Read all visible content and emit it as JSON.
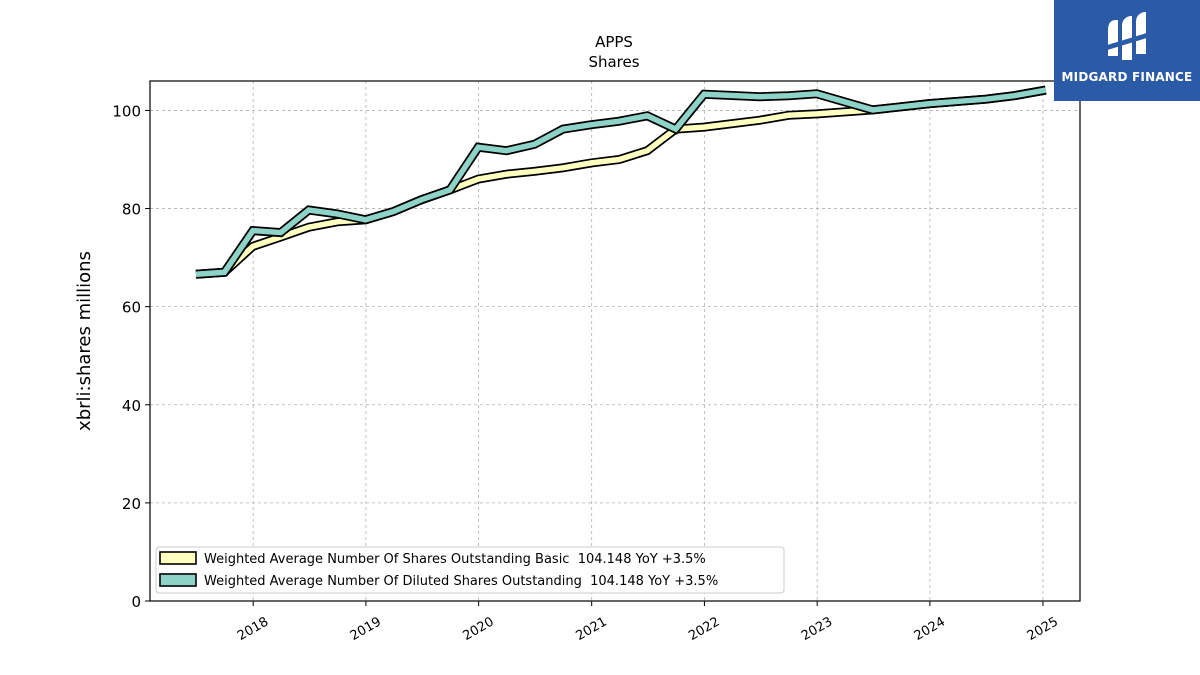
{
  "brand": {
    "name": "MIDGARD FINANCE",
    "color": "#2b5aa7"
  },
  "chart_data": {
    "type": "line",
    "title": "APPS",
    "subtitle": "Shares",
    "xlabel": "",
    "ylabel": "xbrli:shares millions",
    "xlim": [
      "2017-02-01",
      "2025-05-01"
    ],
    "ylim": [
      0,
      106
    ],
    "yticks": [
      0,
      20,
      40,
      60,
      80,
      100
    ],
    "xticks": [
      "2018",
      "2019",
      "2020",
      "2021",
      "2022",
      "2023",
      "2024",
      "2025"
    ],
    "grid": true,
    "legend_position": "lower-left",
    "series": [
      {
        "name": "Weighted Average Number Of Shares Outstanding Basic  104.148 YoY +3.5%",
        "color": "#ffffbf",
        "points": [
          [
            "2017-06-30",
            66.6
          ],
          [
            "2017-09-30",
            67.0
          ],
          [
            "2017-12-31",
            72.3
          ],
          [
            "2018-03-31",
            74.2
          ],
          [
            "2018-06-30",
            76.2
          ],
          [
            "2018-09-30",
            77.3
          ],
          [
            "2018-12-31",
            77.7
          ],
          [
            "2019-03-31",
            79.4
          ],
          [
            "2019-06-30",
            81.8
          ],
          [
            "2019-09-30",
            83.8
          ],
          [
            "2019-12-31",
            86.0
          ],
          [
            "2020-03-31",
            87.0
          ],
          [
            "2020-06-30",
            87.6
          ],
          [
            "2020-09-30",
            88.3
          ],
          [
            "2020-12-31",
            89.3
          ],
          [
            "2021-03-31",
            90.0
          ],
          [
            "2021-06-30",
            91.8
          ],
          [
            "2021-09-30",
            96.2
          ],
          [
            "2021-12-31",
            96.6
          ],
          [
            "2022-06-30",
            98.0
          ],
          [
            "2022-09-30",
            99.0
          ],
          [
            "2022-12-31",
            99.3
          ],
          [
            "2023-06-30",
            100.1
          ],
          [
            "2023-12-31",
            101.4
          ],
          [
            "2024-06-30",
            102.3
          ],
          [
            "2024-09-30",
            103.0
          ],
          [
            "2025-01-10",
            104.148
          ]
        ]
      },
      {
        "name": "Weighted Average Number Of Diluted Shares Outstanding  104.148 YoY +3.5%",
        "color": "#8dd3c7",
        "points": [
          [
            "2017-06-30",
            66.6
          ],
          [
            "2017-09-30",
            67.0
          ],
          [
            "2017-12-31",
            75.5
          ],
          [
            "2018-03-31",
            75.1
          ],
          [
            "2018-06-30",
            79.7
          ],
          [
            "2018-09-30",
            78.9
          ],
          [
            "2018-12-31",
            77.7
          ],
          [
            "2019-03-31",
            79.4
          ],
          [
            "2019-06-30",
            81.8
          ],
          [
            "2019-09-30",
            83.8
          ],
          [
            "2019-12-31",
            92.5
          ],
          [
            "2020-03-31",
            91.8
          ],
          [
            "2020-06-30",
            93.1
          ],
          [
            "2020-09-30",
            96.2
          ],
          [
            "2020-12-31",
            97.1
          ],
          [
            "2021-03-31",
            97.8
          ],
          [
            "2021-06-30",
            98.9
          ],
          [
            "2021-09-30",
            96.2
          ],
          [
            "2021-12-31",
            103.3
          ],
          [
            "2022-06-30",
            102.8
          ],
          [
            "2022-09-30",
            103.0
          ],
          [
            "2022-12-31",
            103.4
          ],
          [
            "2023-06-30",
            100.1
          ],
          [
            "2023-12-31",
            101.4
          ],
          [
            "2024-06-30",
            102.3
          ],
          [
            "2024-09-30",
            103.0
          ],
          [
            "2025-01-10",
            104.148
          ]
        ]
      }
    ]
  }
}
